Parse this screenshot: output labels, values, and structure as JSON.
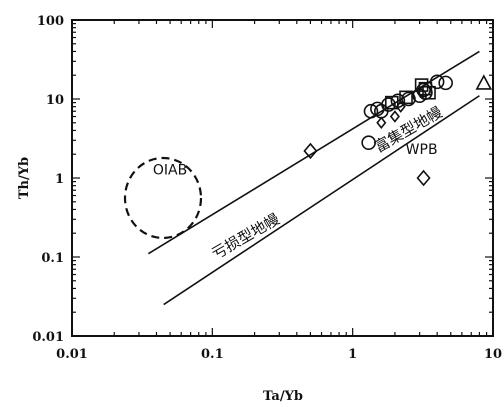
{
  "chart_data": {
    "type": "scatter",
    "xscale": "log",
    "yscale": "log",
    "xlim": [
      0.01,
      10
    ],
    "ylim": [
      0.01,
      100
    ],
    "xlabel": "Ta/Yb",
    "ylabel": "Th/Yb",
    "xticks": [
      {
        "value": 0.01,
        "label": "0.01"
      },
      {
        "value": 0.1,
        "label": "0.1"
      },
      {
        "value": 1,
        "label": "1"
      },
      {
        "value": 10,
        "label": "10"
      }
    ],
    "yticks": [
      {
        "value": 0.01,
        "label": "0.01"
      },
      {
        "value": 0.1,
        "label": "0.1"
      },
      {
        "value": 1,
        "label": "1"
      },
      {
        "value": 10,
        "label": "10"
      },
      {
        "value": 100,
        "label": "100"
      }
    ],
    "lines": [
      {
        "points": [
          [
            0.035,
            0.11
          ],
          [
            8,
            40
          ]
        ]
      },
      {
        "points": [
          [
            0.045,
            0.025
          ],
          [
            8,
            11
          ]
        ]
      }
    ],
    "annotations": [
      {
        "text": "OIAB",
        "x": 0.05,
        "y": 1.1
      },
      {
        "text": "亏损型地幔",
        "x": 0.18,
        "y": 0.16
      },
      {
        "text": "富集型地幔",
        "x": 2.6,
        "y": 3.6
      },
      {
        "text": "WPB",
        "x": 3.1,
        "y": 2.0
      }
    ],
    "series": [
      {
        "marker": "diamond",
        "points": [
          [
            0.5,
            2.2
          ],
          [
            3.2,
            1.0
          ]
        ]
      },
      {
        "marker": "circle",
        "points": [
          [
            1.3,
            2.8
          ],
          [
            1.35,
            7.0
          ],
          [
            1.5,
            7.5
          ],
          [
            1.6,
            7.0
          ],
          [
            1.8,
            8.5
          ],
          [
            2.1,
            9.5
          ],
          [
            2.5,
            10.0
          ],
          [
            3.0,
            11.0
          ],
          [
            3.2,
            13.0
          ],
          [
            3.3,
            12.0
          ],
          [
            4.0,
            16.5
          ],
          [
            4.6,
            16.0
          ]
        ]
      },
      {
        "marker": "square",
        "points": [
          [
            1.9,
            9.0
          ],
          [
            2.4,
            10.5
          ],
          [
            3.1,
            15.0
          ],
          [
            3.3,
            13.5
          ],
          [
            3.5,
            12.0
          ]
        ]
      },
      {
        "marker": "triangle",
        "points": [
          [
            8.6,
            15.5
          ]
        ]
      },
      {
        "marker": "diamond-small",
        "points": [
          [
            1.6,
            5.0
          ],
          [
            2.0,
            6.0
          ],
          [
            2.2,
            8.0
          ]
        ]
      }
    ]
  }
}
